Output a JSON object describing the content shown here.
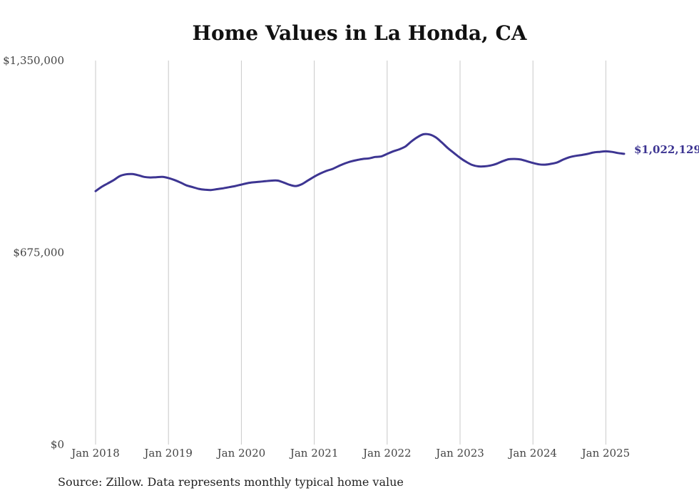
{
  "chart_data": {
    "type": "line",
    "title": "Home Values in La Honda, CA",
    "source_note": "Source: Zillow. Data represents monthly typical home value",
    "xlabel": "",
    "ylabel": "",
    "ylim": [
      0,
      1350000
    ],
    "y_ticks": [
      {
        "value": 0,
        "label": "$0"
      },
      {
        "value": 675000,
        "label": "$675,000"
      },
      {
        "value": 1350000,
        "label": "$1,350,000"
      }
    ],
    "x_ticks": [
      {
        "value": "2018-01",
        "label": "Jan 2018"
      },
      {
        "value": "2019-01",
        "label": "Jan 2019"
      },
      {
        "value": "2020-01",
        "label": "Jan 2020"
      },
      {
        "value": "2021-01",
        "label": "Jan 2021"
      },
      {
        "value": "2022-01",
        "label": "Jan 2022"
      },
      {
        "value": "2023-01",
        "label": "Jan 2023"
      },
      {
        "value": "2024-01",
        "label": "Jan 2024"
      },
      {
        "value": "2025-01",
        "label": "Jan 2025"
      }
    ],
    "grid": "vertical",
    "line_color": "#3d3592",
    "end_label": "$1,022,129",
    "series": [
      {
        "x": [
          "2018-01",
          "2018-02",
          "2018-03",
          "2018-04",
          "2018-05",
          "2018-06",
          "2018-07",
          "2018-08",
          "2018-09",
          "2018-10",
          "2018-11",
          "2018-12",
          "2019-01",
          "2019-02",
          "2019-03",
          "2019-04",
          "2019-05",
          "2019-06",
          "2019-07",
          "2019-08",
          "2019-09",
          "2019-10",
          "2019-11",
          "2019-12",
          "2020-01",
          "2020-02",
          "2020-03",
          "2020-04",
          "2020-05",
          "2020-06",
          "2020-07",
          "2020-08",
          "2020-09",
          "2020-10",
          "2020-11",
          "2020-12",
          "2021-01",
          "2021-02",
          "2021-03",
          "2021-04",
          "2021-05",
          "2021-06",
          "2021-07",
          "2021-08",
          "2021-09",
          "2021-10",
          "2021-11",
          "2021-12",
          "2022-01",
          "2022-02",
          "2022-03",
          "2022-04",
          "2022-05",
          "2022-06",
          "2022-07",
          "2022-08",
          "2022-09",
          "2022-10",
          "2022-11",
          "2022-12",
          "2023-01",
          "2023-02",
          "2023-03",
          "2023-04",
          "2023-05",
          "2023-06",
          "2023-07",
          "2023-08",
          "2023-09",
          "2023-10",
          "2023-11",
          "2023-12",
          "2024-01",
          "2024-02",
          "2024-03",
          "2024-04",
          "2024-05",
          "2024-06",
          "2024-07",
          "2024-08",
          "2024-09",
          "2024-10",
          "2024-11",
          "2024-12",
          "2025-01",
          "2025-02",
          "2025-03",
          "2025-04"
        ],
        "values": [
          891000,
          906000,
          918000,
          930000,
          944000,
          950000,
          951000,
          947000,
          941000,
          939000,
          940000,
          941000,
          937000,
          930000,
          921000,
          911000,
          905000,
          899000,
          896000,
          895000,
          898000,
          901000,
          905000,
          909000,
          914000,
          919000,
          922000,
          924000,
          926000,
          928000,
          928000,
          921000,
          913000,
          909000,
          916000,
          929000,
          942000,
          953000,
          962000,
          969000,
          979000,
          988000,
          995000,
          1000000,
          1004000,
          1006000,
          1011000,
          1013000,
          1022000,
          1031000,
          1038000,
          1048000,
          1066000,
          1081000,
          1091000,
          1090000,
          1080000,
          1062000,
          1042000,
          1025000,
          1008000,
          994000,
          983000,
          978000,
          978000,
          981000,
          987000,
          996000,
          1003000,
          1004000,
          1002000,
          996000,
          990000,
          985000,
          984000,
          987000,
          992000,
          1002000,
          1010000,
          1015000,
          1018000,
          1022000,
          1027000,
          1029000,
          1031000,
          1029000,
          1025000,
          1022129
        ]
      }
    ]
  }
}
